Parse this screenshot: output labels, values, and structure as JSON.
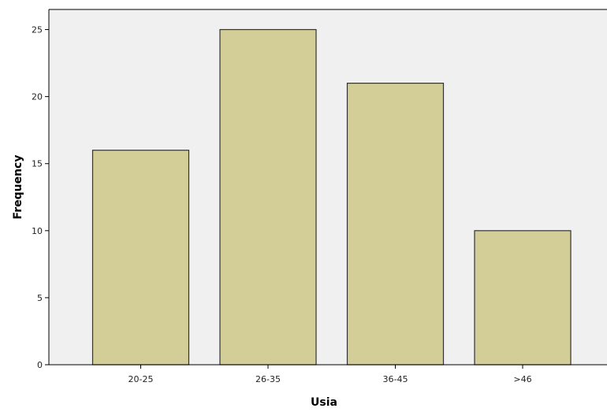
{
  "chart_data": {
    "type": "bar",
    "categories": [
      "20-25",
      "26-35",
      "36-45",
      ">46"
    ],
    "values": [
      16,
      25,
      21,
      10
    ],
    "title": "",
    "xlabel": "Usia",
    "ylabel": "Frequency",
    "ylim": [
      0,
      26.5
    ],
    "yticks": [
      0,
      5,
      10,
      15,
      20,
      25
    ],
    "grid": false,
    "legend": "none"
  },
  "colors": {
    "plot_background": "#f0f0f0",
    "bar_fill": "#d3ce97",
    "bar_stroke": "#333333",
    "axis": "#000000"
  }
}
